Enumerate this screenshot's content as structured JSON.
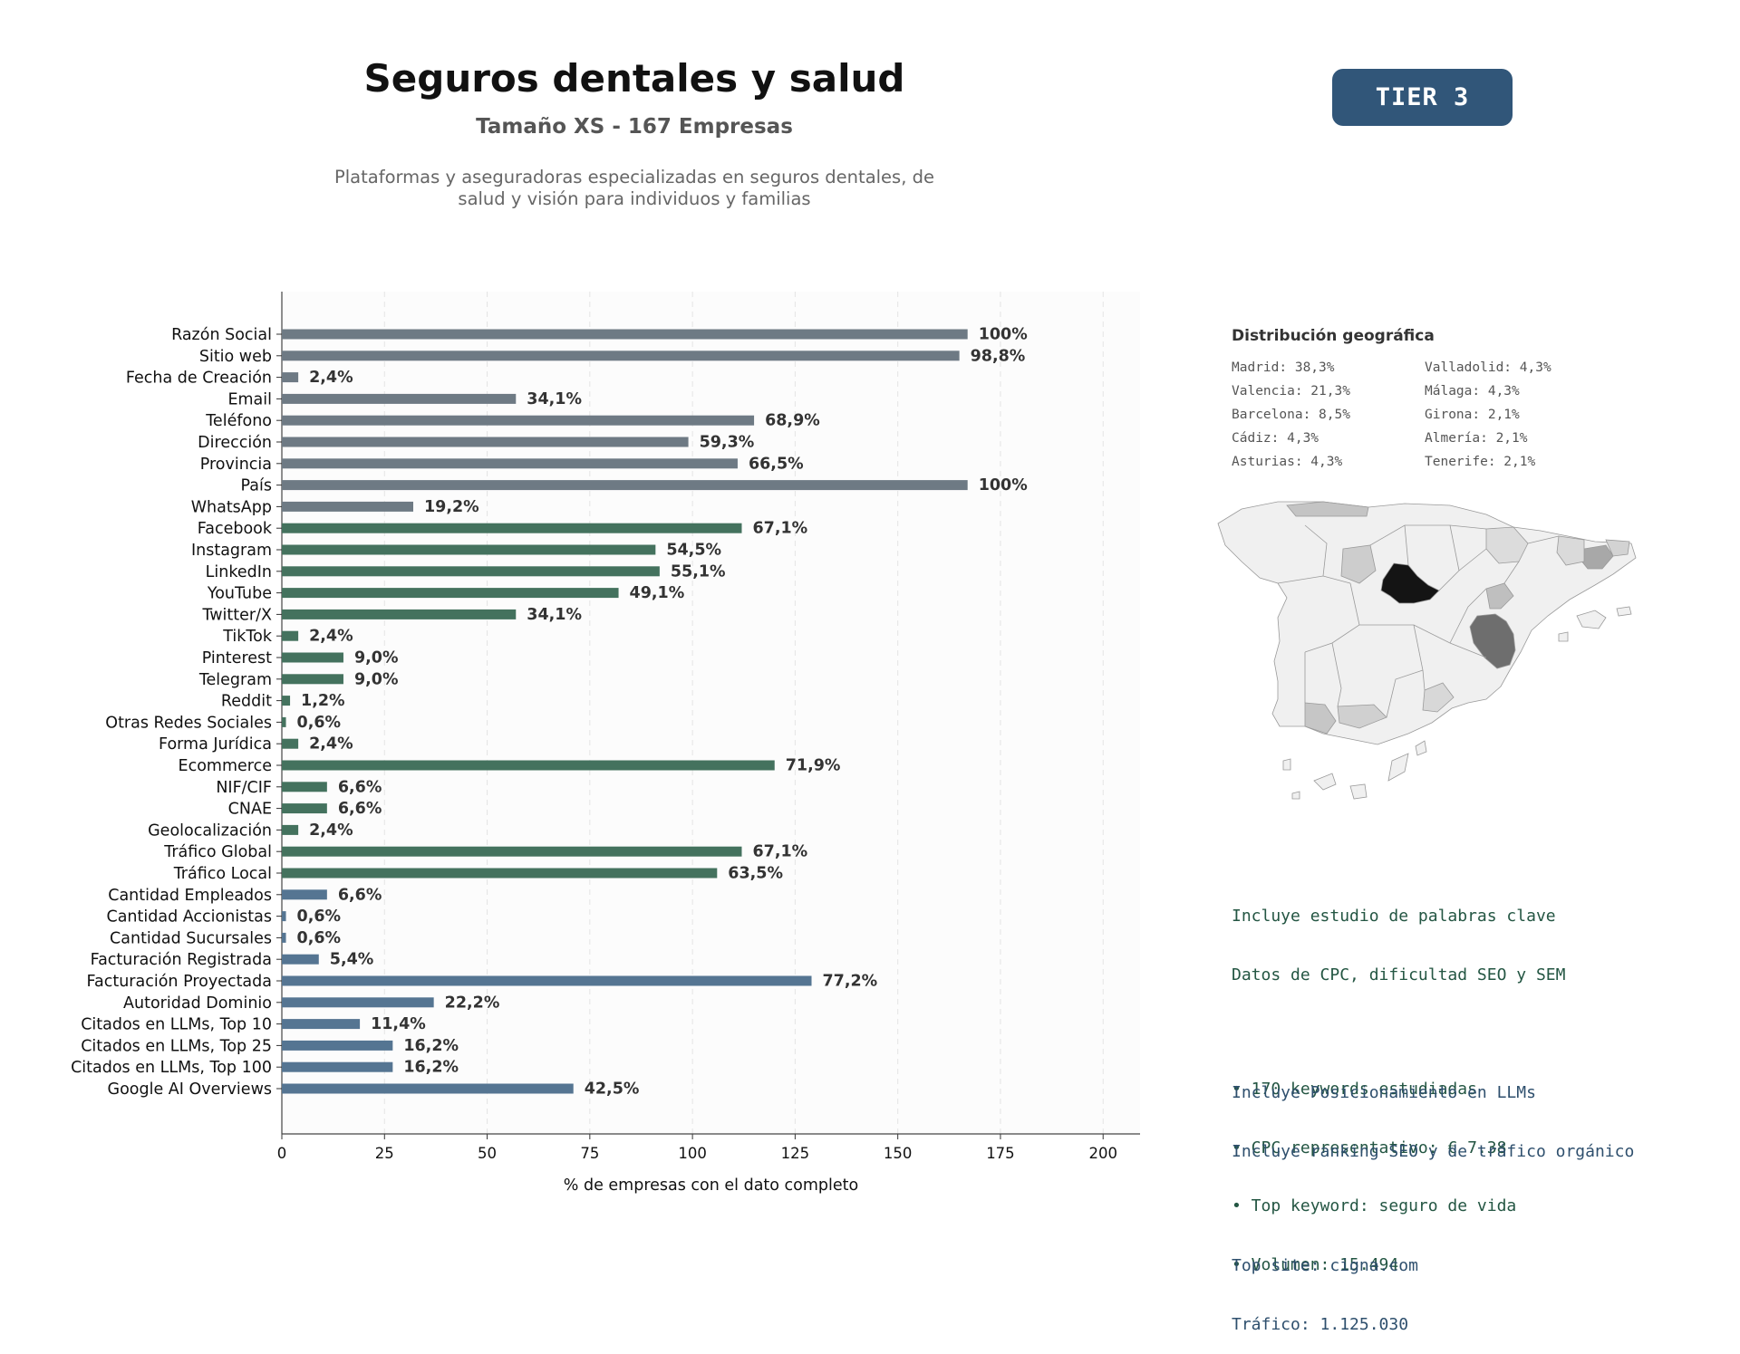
{
  "header": {
    "title": "Seguros dentales y salud",
    "subtitle": "Tamaño XS - 167 Empresas",
    "description_line1": "Plataformas y aseguradoras especializadas en seguros dentales, de",
    "description_line2": "salud y visión para individuos y familias",
    "tier": "TIER 3"
  },
  "chart_data": {
    "type": "bar",
    "orientation": "horizontal",
    "xlabel": "% de empresas con el dato completo",
    "xlim": [
      0,
      209
    ],
    "xticks": [
      0,
      25,
      50,
      75,
      100,
      125,
      150,
      175,
      200
    ],
    "grid": "vertical dashed",
    "categories": [
      "Razón Social",
      "Sitio web",
      "Fecha de Creación",
      "Email",
      "Teléfono",
      "Dirección",
      "Provincia",
      "País",
      "WhatsApp",
      "Facebook",
      "Instagram",
      "LinkedIn",
      "YouTube",
      "Twitter/X",
      "TikTok",
      "Pinterest",
      "Telegram",
      "Reddit",
      "Otras Redes Sociales",
      "Forma Jurídica",
      "Ecommerce",
      "NIF/CIF",
      "CNAE",
      "Geolocalización",
      "Tráfico Global",
      "Tráfico Local",
      "Cantidad Empleados",
      "Cantidad Accionistas",
      "Cantidad Sucursales",
      "Facturación Registrada",
      "Facturación Proyectada",
      "Autoridad Dominio",
      "Citados en LLMs, Top 10",
      "Citados en LLMs, Top 25",
      "Citados en LLMs, Top 100",
      "Google AI Overviews"
    ],
    "values": [
      167,
      165,
      4,
      57,
      115,
      99,
      111,
      167,
      32,
      112,
      91,
      92,
      82,
      57,
      4,
      15,
      15,
      2,
      1,
      4,
      120,
      11,
      11,
      4,
      112,
      106,
      11,
      1,
      1,
      9,
      129,
      37,
      19,
      27,
      27,
      71
    ],
    "labels": [
      "100%",
      "98,8%",
      "2,4%",
      "34,1%",
      "68,9%",
      "59,3%",
      "66,5%",
      "100%",
      "19,2%",
      "67,1%",
      "54,5%",
      "55,1%",
      "49,1%",
      "34,1%",
      "2,4%",
      "9,0%",
      "9,0%",
      "1,2%",
      "0,6%",
      "2,4%",
      "71,9%",
      "6,6%",
      "6,6%",
      "2,4%",
      "67,1%",
      "63,5%",
      "6,6%",
      "0,6%",
      "0,6%",
      "5,4%",
      "77,2%",
      "22,2%",
      "11,4%",
      "16,2%",
      "16,2%",
      "42,5%"
    ],
    "groups": [
      "gray",
      "gray",
      "gray",
      "gray",
      "gray",
      "gray",
      "gray",
      "gray",
      "gray",
      "green",
      "green",
      "green",
      "green",
      "green",
      "green",
      "green",
      "green",
      "green",
      "green",
      "green",
      "green",
      "green",
      "green",
      "green",
      "green",
      "green",
      "blue",
      "blue",
      "blue",
      "blue",
      "blue",
      "blue",
      "blue",
      "blue",
      "blue",
      "blue"
    ],
    "colors": {
      "gray": "#6e7a84",
      "green": "#44725e",
      "blue": "#557592"
    }
  },
  "geo": {
    "title": "Distribución geográfica",
    "left": [
      "Madrid: 38,3%",
      "Valencia: 21,3%",
      "Barcelona: 8,5%",
      "Cádiz: 4,3%",
      "Asturias: 4,3%"
    ],
    "right": [
      "Valladolid: 4,3%",
      "Málaga: 4,3%",
      "Girona: 2,1%",
      "Almería: 2,1%",
      "Tenerife: 2,1%"
    ]
  },
  "info": {
    "keywords_line1": "Incluye estudio de palabras clave",
    "keywords_line2": "Datos de CPC, dificultad SEO y SEM",
    "bullet1": "• 170 keywords estudiadas",
    "bullet2": "• CPC representativo: € 7.38",
    "bullet3": "• Top keyword: seguro de vida",
    "bullet4": "• Volumen: 15.494",
    "llm_line1": "Incluye Posicionamiento en LLMs",
    "llm_line2": "Incluye ranking SEO y de tráfico orgánico",
    "top_site": "Top site: cigna.com",
    "traffic": "Tráfico: 1.125.030"
  }
}
